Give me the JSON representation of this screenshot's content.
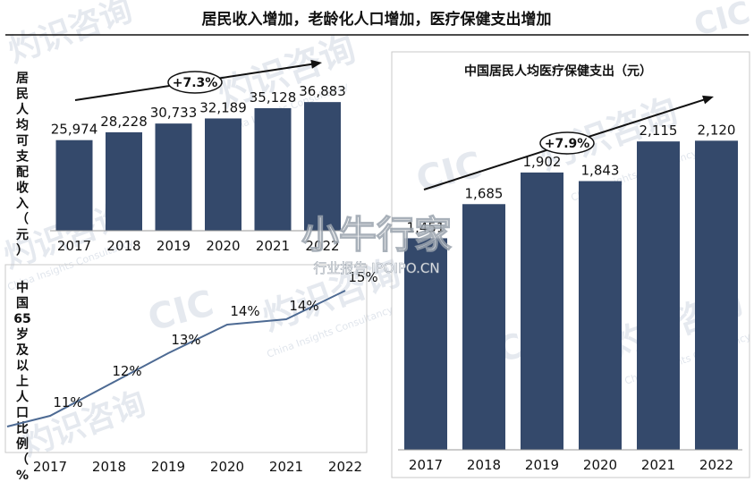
{
  "page_title": "居民收入增加，老龄化人口增加，医疗保健支出增加",
  "watermarks": {
    "brand": "灼识咨询",
    "brand_en": "China Insights Consultancy",
    "logo": "CIC",
    "site_cn": "小牛行家",
    "site_sub": "行业报告 IPOIPO.CN"
  },
  "chart_data": [
    {
      "type": "bar",
      "id": "income",
      "ylabel": "居民人均可支配收入（元）",
      "categories": [
        "2017",
        "2018",
        "2019",
        "2020",
        "2021",
        "2022"
      ],
      "values": [
        25974,
        28228,
        30733,
        32189,
        35128,
        36883
      ],
      "value_labels": [
        "25,974",
        "28,228",
        "30,733",
        "32,189",
        "35,128",
        "36,883"
      ],
      "growth_label": "+7.3%",
      "bar_color": "#34496b",
      "ylim": [
        0,
        40000
      ]
    },
    {
      "type": "line",
      "id": "aging",
      "ylabel": "中国65岁及以上人口比例（%）",
      "categories": [
        "2017",
        "2018",
        "2019",
        "2020",
        "2021",
        "2022"
      ],
      "values": [
        11,
        12,
        13,
        14,
        14,
        15
      ],
      "value_labels": [
        "11%",
        "12%",
        "13%",
        "14%",
        "14%",
        "15%"
      ],
      "line_color": "#4d6a93",
      "ylim": [
        10,
        16
      ]
    },
    {
      "type": "bar",
      "id": "medical",
      "title": "中国居民人均医疗保健支出（元）",
      "categories": [
        "2017",
        "2018",
        "2019",
        "2020",
        "2021",
        "2022"
      ],
      "values": [
        1451,
        1685,
        1902,
        1843,
        2115,
        2120
      ],
      "value_labels": [
        "1,451",
        "1,685",
        "1,902",
        "1,843",
        "2,115",
        "2,120"
      ],
      "growth_label": "+7.9%",
      "bar_color": "#34496b",
      "ylim": [
        0,
        2300
      ]
    }
  ]
}
